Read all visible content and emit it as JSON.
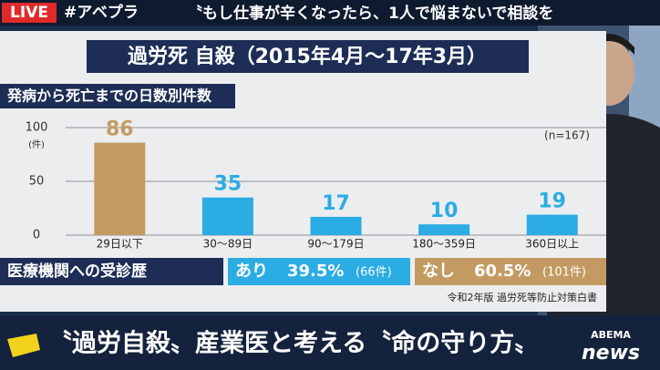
{
  "banner": {
    "live": "LIVE",
    "hashtag": "#アベプラ",
    "headline": "〝もし仕事が辛くなったら、1人で悩まないで相談を"
  },
  "chart_data": {
    "type": "bar",
    "title": "過労死 自殺（2015年4月～17年3月）",
    "subtitle": "発病から死亡までの日数別件数",
    "y_unit": "(件)",
    "note": "(n=167)",
    "categories": [
      "29日以下",
      "30～89日",
      "90～179日",
      "180～359日",
      "360日以上"
    ],
    "values": [
      86,
      35,
      17,
      10,
      19
    ],
    "colors": [
      "#c39b62",
      "#2bace3",
      "#2bace3",
      "#2bace3",
      "#2bace3"
    ],
    "ylim": [
      0,
      100
    ],
    "yticks": [
      0,
      50,
      100
    ],
    "grid": true
  },
  "visits": {
    "label": "医療機関への受診歴",
    "yes": {
      "label": "あり",
      "percent": "39.5%",
      "count": "(66件)"
    },
    "no": {
      "label": "なし",
      "percent": "60.5%",
      "count": "(101件)"
    }
  },
  "source": "令和2年版 過労死等防止対策白書",
  "ticker": {
    "headline": "〝過労自殺〟産業医と考える〝命の守り方〟",
    "logo_top": "ABEMA",
    "logo_bottom": "news"
  }
}
